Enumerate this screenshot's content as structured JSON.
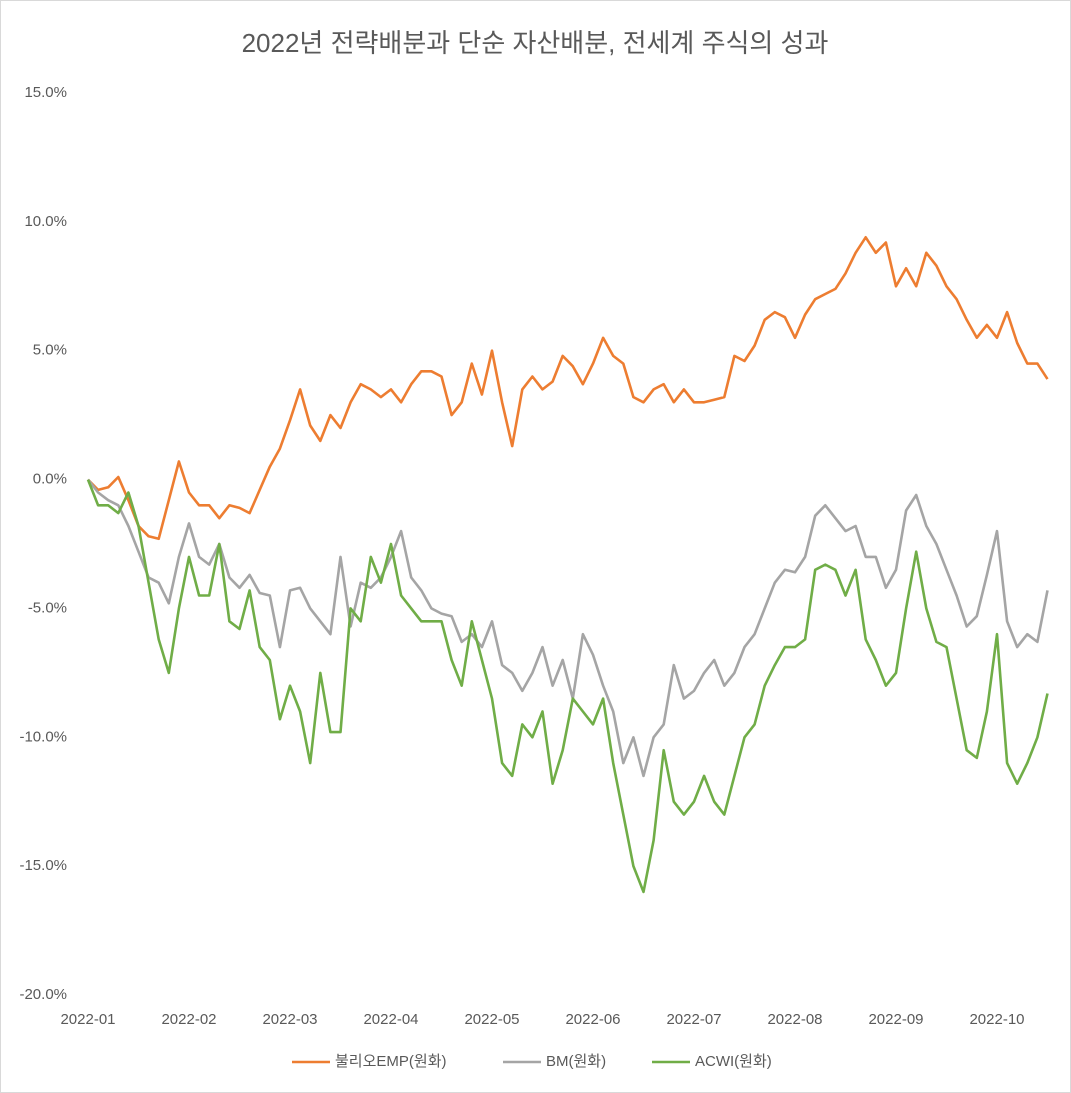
{
  "chart_data": {
    "type": "line",
    "title": "2022년 전략배분과 단순 자산배분, 전세계 주식의 성과",
    "categories": [
      "2022-01",
      null,
      null,
      null,
      null,
      null,
      null,
      null,
      null,
      null,
      "2022-02",
      null,
      null,
      null,
      null,
      null,
      null,
      null,
      null,
      null,
      "2022-03",
      null,
      null,
      null,
      null,
      null,
      null,
      null,
      null,
      null,
      "2022-04",
      null,
      null,
      null,
      null,
      null,
      null,
      null,
      null,
      null,
      "2022-05",
      null,
      null,
      null,
      null,
      null,
      null,
      null,
      null,
      null,
      "2022-06",
      null,
      null,
      null,
      null,
      null,
      null,
      null,
      null,
      null,
      "2022-07",
      null,
      null,
      null,
      null,
      null,
      null,
      null,
      null,
      null,
      "2022-08",
      null,
      null,
      null,
      null,
      null,
      null,
      null,
      null,
      null,
      "2022-09",
      null,
      null,
      null,
      null,
      null,
      null,
      null,
      null,
      null,
      "2022-10",
      null,
      null,
      null,
      null,
      null
    ],
    "series": [
      {
        "name": "불리오EMP(원화)",
        "color": "#ED7D31",
        "values": [
          0,
          -0.4,
          -0.3,
          0.1,
          -0.8,
          -1.8,
          -2.2,
          -2.3,
          -0.8,
          0.7,
          -0.5,
          -1.0,
          -1.0,
          -1.5,
          -1.0,
          -1.1,
          -1.3,
          -0.4,
          0.5,
          1.2,
          2.3,
          3.5,
          2.1,
          1.5,
          2.5,
          2.0,
          3.0,
          3.7,
          3.5,
          3.2,
          3.5,
          3.0,
          3.7,
          4.2,
          4.2,
          4.0,
          2.5,
          3.0,
          4.5,
          3.3,
          5.0,
          3.0,
          1.3,
          3.5,
          4.0,
          3.5,
          3.8,
          4.8,
          4.4,
          3.7,
          4.5,
          5.5,
          4.8,
          4.5,
          3.2,
          3.0,
          3.5,
          3.7,
          3.0,
          3.5,
          3.0,
          3.0,
          3.1,
          3.2,
          4.8,
          4.6,
          5.2,
          6.2,
          6.5,
          6.3,
          5.5,
          6.4,
          7.0,
          7.2,
          7.4,
          8.0,
          8.8,
          9.4,
          8.8,
          9.2,
          7.5,
          8.2,
          7.5,
          8.8,
          8.3,
          7.5,
          7.0,
          6.2,
          5.5,
          6.0,
          5.5,
          6.5,
          5.3,
          4.5,
          4.5,
          3.9
        ]
      },
      {
        "name": "BM(원화)",
        "color": "#A5A5A5",
        "values": [
          0,
          -0.5,
          -0.8,
          -1.0,
          -1.8,
          -2.8,
          -3.8,
          -4.0,
          -4.8,
          -3.0,
          -1.7,
          -3.0,
          -3.3,
          -2.5,
          -3.8,
          -4.2,
          -3.7,
          -4.4,
          -4.5,
          -6.5,
          -4.3,
          -4.2,
          -5.0,
          -5.5,
          -6.0,
          -3.0,
          -5.7,
          -4.0,
          -4.2,
          -3.8,
          -3.0,
          -2.0,
          -3.8,
          -4.3,
          -5.0,
          -5.2,
          -5.3,
          -6.3,
          -6.0,
          -6.5,
          -5.5,
          -7.2,
          -7.5,
          -8.2,
          -7.5,
          -6.5,
          -8.0,
          -7.0,
          -8.5,
          -6.0,
          -6.8,
          -8.0,
          -9.0,
          -11.0,
          -10.0,
          -11.5,
          -10.0,
          -9.5,
          -7.2,
          -8.5,
          -8.2,
          -7.5,
          -7.0,
          -8.0,
          -7.5,
          -6.5,
          -6.0,
          -5.0,
          -4.0,
          -3.5,
          -3.6,
          -3.0,
          -1.4,
          -1.0,
          -1.5,
          -2.0,
          -1.8,
          -3.0,
          -3.0,
          -4.2,
          -3.5,
          -1.2,
          -0.6,
          -1.8,
          -2.5,
          -3.5,
          -4.5,
          -5.7,
          -5.3,
          -3.7,
          -2.0,
          -5.5,
          -6.5,
          -6.0,
          -6.3,
          -4.3
        ]
      },
      {
        "name": "ACWI(원화)",
        "color": "#70AD47",
        "values": [
          0,
          -1.0,
          -1.0,
          -1.3,
          -0.5,
          -1.8,
          -4.0,
          -6.2,
          -7.5,
          -5.0,
          -3.0,
          -4.5,
          -4.5,
          -2.5,
          -5.5,
          -5.8,
          -4.3,
          -6.5,
          -7.0,
          -9.3,
          -8.0,
          -9.0,
          -11.0,
          -7.5,
          -9.8,
          -9.8,
          -5.0,
          -5.5,
          -3.0,
          -4.0,
          -2.5,
          -4.5,
          -5.0,
          -5.5,
          -5.5,
          -5.5,
          -7.0,
          -8.0,
          -5.5,
          -7.0,
          -8.5,
          -11.0,
          -11.5,
          -9.5,
          -10.0,
          -9.0,
          -11.8,
          -10.5,
          -8.5,
          -9.0,
          -9.5,
          -8.5,
          -11.0,
          -13.0,
          -15.0,
          -16.0,
          -14.0,
          -10.5,
          -12.5,
          -13.0,
          -12.5,
          -11.5,
          -12.5,
          -13.0,
          -11.5,
          -10.0,
          -9.5,
          -8.0,
          -7.2,
          -6.5,
          -6.5,
          -6.2,
          -3.5,
          -3.3,
          -3.5,
          -4.5,
          -3.5,
          -6.2,
          -7.0,
          -8.0,
          -7.5,
          -5.0,
          -2.8,
          -5.0,
          -6.3,
          -6.5,
          -8.5,
          -10.5,
          -10.8,
          -9.0,
          -6.0,
          -11.0,
          -11.8,
          -11.0,
          -10.0,
          -8.3
        ]
      }
    ],
    "ylim": [
      -20,
      15
    ],
    "yticks": [
      {
        "value": 15,
        "label": "15.0%"
      },
      {
        "value": 10,
        "label": "10.0%"
      },
      {
        "value": 5,
        "label": "5.0%"
      },
      {
        "value": 0,
        "label": "0.0%"
      },
      {
        "value": -5,
        "label": "-5.0%"
      },
      {
        "value": -10,
        "label": "-10.0%"
      },
      {
        "value": -15,
        "label": "-15.0%"
      },
      {
        "value": -20,
        "label": "-20.0%"
      }
    ],
    "legend": "bottom"
  }
}
